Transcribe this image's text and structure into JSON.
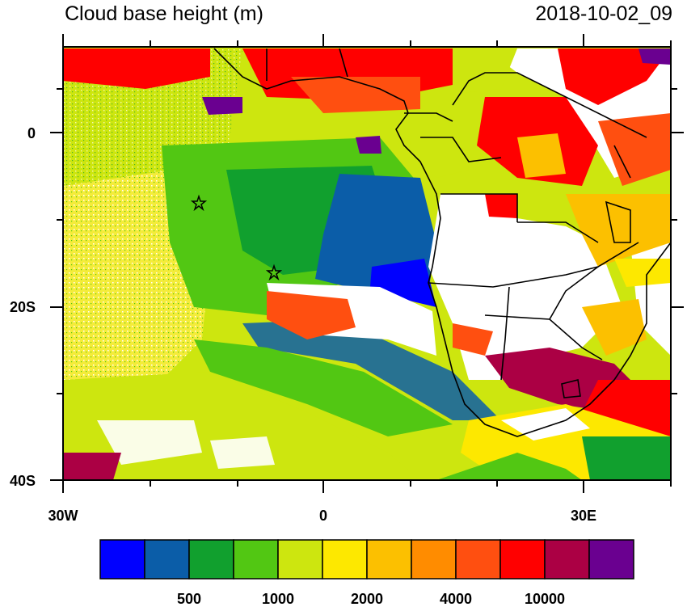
{
  "title": "Cloud base height (m)",
  "timestamp": "2018-10-02_09",
  "axes": {
    "lat_labels": [
      "0",
      "20S",
      "40S"
    ],
    "lon_labels": [
      "30W",
      "0",
      "30E"
    ]
  },
  "colorbar": {
    "colors": [
      "#0000ff",
      "#0b5da8",
      "#11a02e",
      "#52c713",
      "#cde60f",
      "#fde800",
      "#fcc000",
      "#ff8c00",
      "#ff4f10",
      "#ff0000",
      "#ab0044",
      "#6a0090"
    ],
    "labels": [
      "500",
      "1000",
      "2000",
      "4000",
      "10000"
    ]
  },
  "markers": {
    "symbol": "star",
    "count": 2
  }
}
